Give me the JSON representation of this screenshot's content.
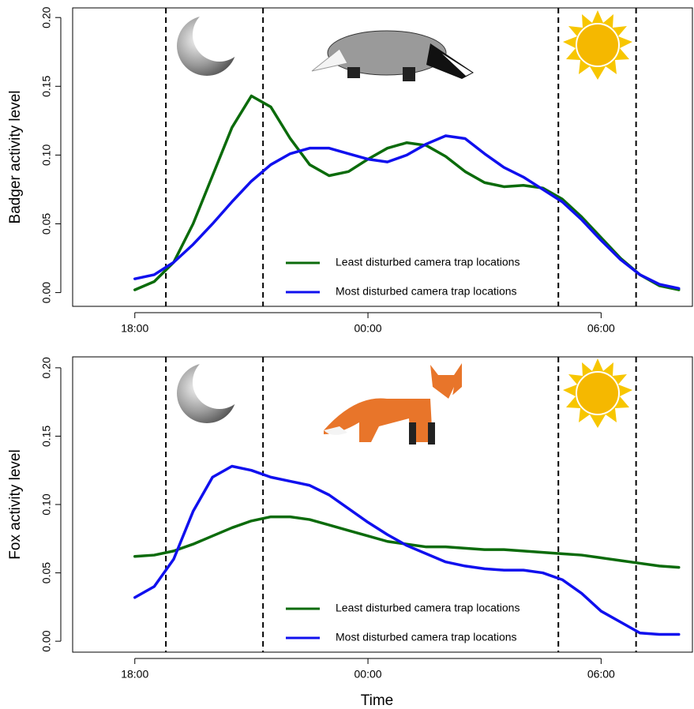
{
  "chart_data": [
    {
      "type": "line",
      "y_label": "Badger activity level",
      "x": [
        18,
        18.5,
        19,
        19.5,
        20,
        20.5,
        21,
        21.5,
        22,
        22.5,
        23,
        23.5,
        24,
        24.5,
        25,
        25.5,
        26,
        26.5,
        27,
        27.5,
        28,
        28.5,
        29,
        29.5,
        30,
        30.5,
        31,
        31.5,
        32
      ],
      "series": [
        {
          "name": "Least disturbed camera trap locations",
          "color": "#0b6b0b",
          "values": [
            0.002,
            0.008,
            0.022,
            0.05,
            0.085,
            0.12,
            0.143,
            0.135,
            0.112,
            0.093,
            0.085,
            0.088,
            0.097,
            0.105,
            0.109,
            0.107,
            0.099,
            0.088,
            0.08,
            0.077,
            0.078,
            0.076,
            0.068,
            0.055,
            0.04,
            0.025,
            0.013,
            0.005,
            0.002
          ]
        },
        {
          "name": "Most disturbed camera trap locations",
          "color": "#1010ee",
          "values": [
            0.01,
            0.013,
            0.022,
            0.035,
            0.05,
            0.066,
            0.081,
            0.093,
            0.101,
            0.105,
            0.105,
            0.101,
            0.097,
            0.095,
            0.1,
            0.108,
            0.114,
            0.112,
            0.101,
            0.091,
            0.084,
            0.075,
            0.066,
            0.053,
            0.038,
            0.024,
            0.013,
            0.006,
            0.003
          ]
        }
      ],
      "xlim": [
        16.4,
        32.35
      ],
      "ylim": [
        -0.01,
        0.207
      ],
      "xticks": [
        {
          "value": 18,
          "label": "18:00"
        },
        {
          "value": 24,
          "label": "00:00"
        },
        {
          "value": 30,
          "label": "06:00"
        }
      ],
      "yticks": [
        {
          "value": 0,
          "label": "0.00"
        },
        {
          "value": 0.05,
          "label": "0.05"
        },
        {
          "value": 0.1,
          "label": "0.10"
        },
        {
          "value": 0.15,
          "label": "0.15"
        },
        {
          "value": 0.2,
          "label": "0.20"
        }
      ],
      "vlines": [
        18.8,
        21.3,
        28.9,
        30.9
      ],
      "legend": "bottom"
    },
    {
      "type": "line",
      "y_label": "Fox activity level",
      "x_label": "Time",
      "x": [
        18,
        18.5,
        19,
        19.5,
        20,
        20.5,
        21,
        21.5,
        22,
        22.5,
        23,
        23.5,
        24,
        24.5,
        25,
        25.5,
        26,
        26.5,
        27,
        27.5,
        28,
        28.5,
        29,
        29.5,
        30,
        30.5,
        31,
        31.5,
        32
      ],
      "series": [
        {
          "name": "Least disturbed camera trap locations",
          "color": "#0b6b0b",
          "values": [
            0.062,
            0.063,
            0.066,
            0.071,
            0.077,
            0.083,
            0.088,
            0.091,
            0.091,
            0.089,
            0.085,
            0.081,
            0.077,
            0.073,
            0.071,
            0.069,
            0.069,
            0.068,
            0.067,
            0.067,
            0.066,
            0.065,
            0.064,
            0.063,
            0.061,
            0.059,
            0.057,
            0.055,
            0.054
          ]
        },
        {
          "name": "Most disturbed camera trap locations",
          "color": "#1010ee",
          "values": [
            0.032,
            0.04,
            0.06,
            0.095,
            0.12,
            0.128,
            0.125,
            0.12,
            0.117,
            0.114,
            0.107,
            0.097,
            0.087,
            0.078,
            0.07,
            0.064,
            0.058,
            0.055,
            0.053,
            0.052,
            0.052,
            0.05,
            0.045,
            0.035,
            0.022,
            0.014,
            0.006,
            0.005,
            0.005
          ]
        }
      ],
      "xlim": [
        16.4,
        32.35
      ],
      "ylim": [
        -0.008,
        0.208
      ],
      "xticks": [
        {
          "value": 18,
          "label": "18:00"
        },
        {
          "value": 24,
          "label": "00:00"
        },
        {
          "value": 30,
          "label": "06:00"
        }
      ],
      "yticks": [
        {
          "value": 0,
          "label": "0.00"
        },
        {
          "value": 0.05,
          "label": "0.05"
        },
        {
          "value": 0.1,
          "label": "0.10"
        },
        {
          "value": 0.15,
          "label": "0.15"
        },
        {
          "value": 0.2,
          "label": "0.20"
        }
      ],
      "vlines": [
        18.8,
        21.3,
        28.9,
        30.9
      ],
      "legend": "bottom"
    }
  ]
}
